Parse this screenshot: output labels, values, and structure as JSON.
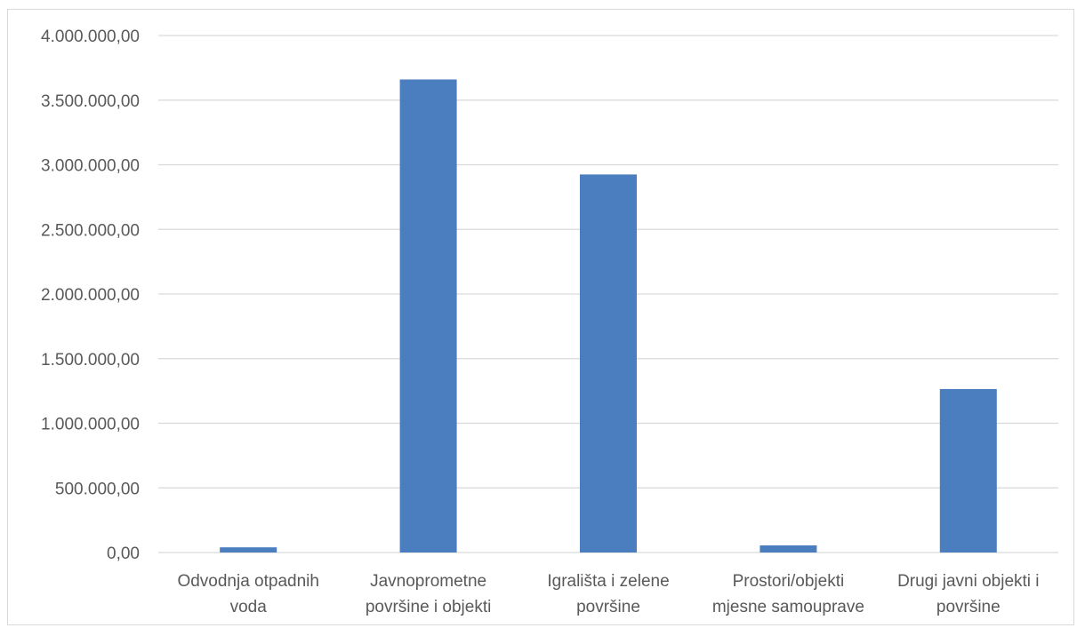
{
  "chart_data": {
    "type": "bar",
    "title": "",
    "xlabel": "",
    "ylabel": "",
    "categories": [
      [
        "Odvodnja otpadnih",
        "voda"
      ],
      [
        "Javnoprometne",
        "površine i objekti"
      ],
      [
        "Igrališta i zelene",
        "površine"
      ],
      [
        "Prostori/objekti",
        "mjesne samouprave"
      ],
      [
        "Drugi javni objekti i",
        "površine"
      ]
    ],
    "values": [
      40000,
      3660000,
      2925000,
      55000,
      1265000
    ],
    "ylim": [
      0,
      4000000
    ],
    "yticks": [
      0,
      500000,
      1000000,
      1500000,
      2000000,
      2500000,
      3000000,
      3500000,
      4000000
    ],
    "ytick_labels": [
      "0,00",
      "500.000,00",
      "1.000.000,00",
      "1.500.000,00",
      "2.000.000,00",
      "2.500.000,00",
      "3.000.000,00",
      "3.500.000,00",
      "4.000.000,00"
    ],
    "grid": true,
    "legend": "none",
    "bar_color": "#4a7ebf",
    "grid_color": "#d9d9d9"
  }
}
